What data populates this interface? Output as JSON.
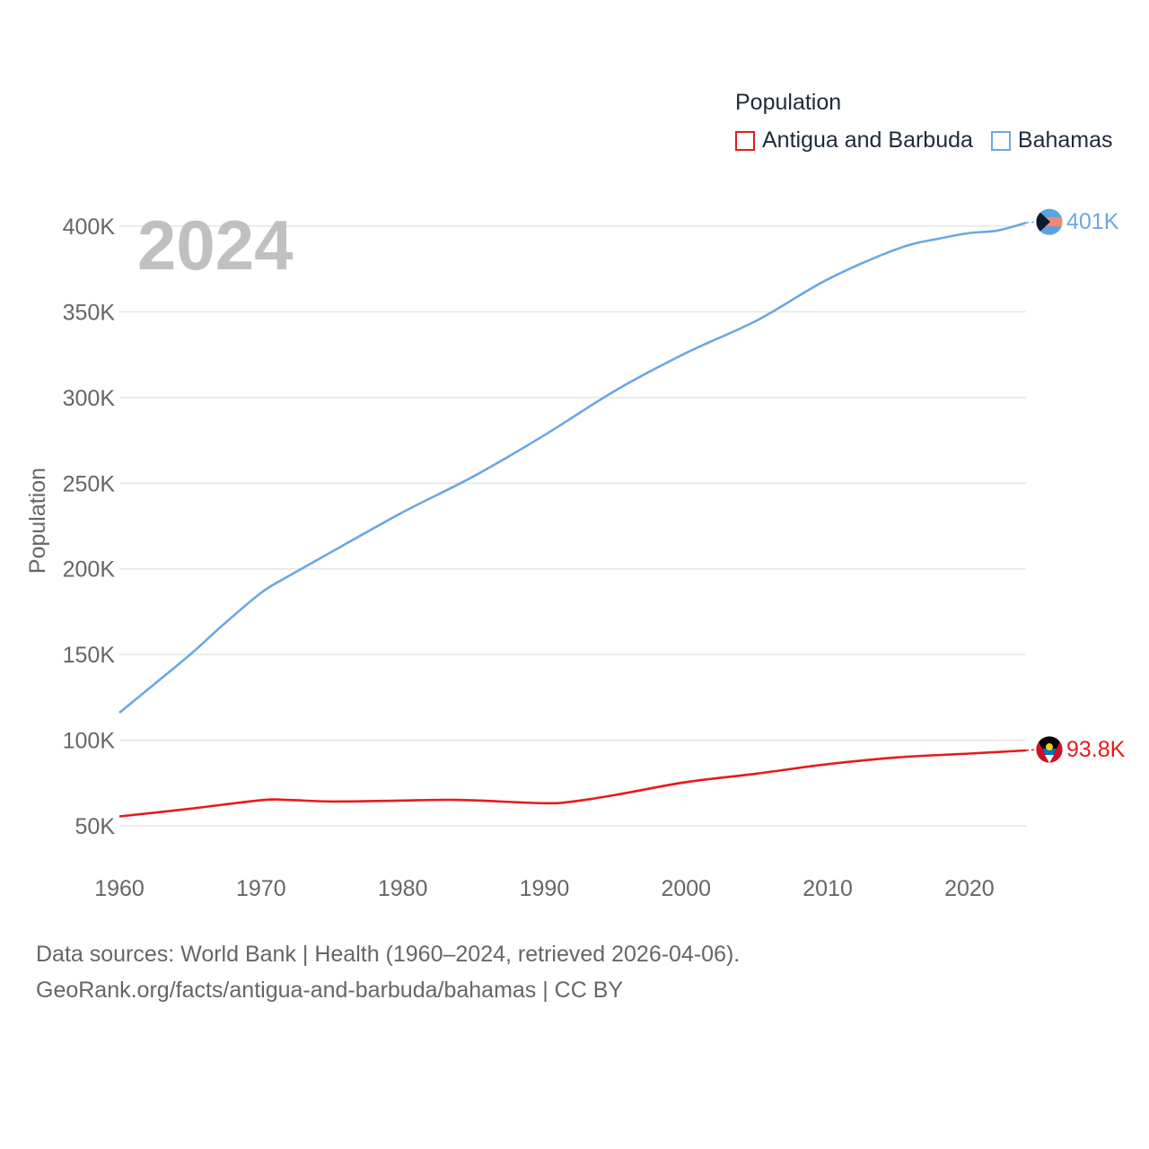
{
  "chart_data": {
    "type": "line",
    "legend_title": "Population",
    "ylabel": "Population",
    "xlabel": "",
    "year_label": "2024",
    "xlim": [
      1960,
      2024
    ],
    "ylim": [
      30000,
      410000
    ],
    "x_ticks": [
      1960,
      1970,
      1980,
      1990,
      2000,
      2010,
      2020
    ],
    "y_ticks": [
      {
        "value": 50000,
        "label": "50K"
      },
      {
        "value": 100000,
        "label": "100K"
      },
      {
        "value": 150000,
        "label": "150K"
      },
      {
        "value": 200000,
        "label": "200K"
      },
      {
        "value": 250000,
        "label": "250K"
      },
      {
        "value": 300000,
        "label": "300K"
      },
      {
        "value": 350000,
        "label": "350K"
      },
      {
        "value": 400000,
        "label": "400K"
      }
    ],
    "series": [
      {
        "name": "Antigua and Barbuda",
        "color": "#e8191d",
        "end_label": "93.8K",
        "x": [
          1960,
          1965,
          1970,
          1972,
          1975,
          1980,
          1983,
          1985,
          1990,
          1992,
          1995,
          2000,
          2005,
          2010,
          2015,
          2020,
          2024
        ],
        "values": [
          55500,
          60000,
          65000,
          65100,
          64200,
          64800,
          65200,
          64900,
          63200,
          64200,
          68000,
          75500,
          80500,
          86000,
          90000,
          92200,
          94000
        ]
      },
      {
        "name": "Bahamas",
        "color": "#6aa8e3",
        "end_label": "401K",
        "x": [
          1960,
          1965,
          1967,
          1970,
          1972,
          1975,
          1980,
          1985,
          1990,
          1995,
          2000,
          2005,
          2010,
          2015,
          2018,
          2020,
          2022,
          2024
        ],
        "values": [
          116000,
          150000,
          165000,
          186000,
          196000,
          210000,
          233000,
          254000,
          278000,
          304000,
          326000,
          345000,
          369000,
          387000,
          393000,
          396000,
          397500,
          402000
        ]
      }
    ]
  },
  "footer": {
    "line1": "Data sources: World Bank | Health (1960–2024, retrieved 2026-04-06).",
    "line2": "GeoRank.org/facts/antigua-and-barbuda/bahamas | CC BY"
  }
}
